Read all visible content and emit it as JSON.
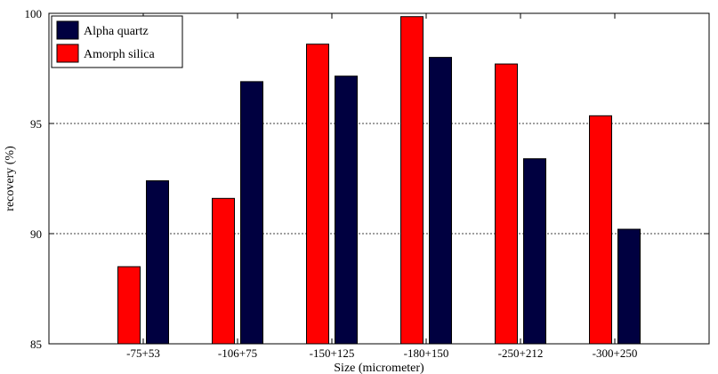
{
  "chart_data": {
    "type": "bar",
    "title": "",
    "xlabel": "Size (micrometer)",
    "ylabel": "recovery (%)",
    "categories": [
      "-75+53",
      "-106+75",
      "-150+125",
      "-180+150",
      "-250+212",
      "-300+250"
    ],
    "series": [
      {
        "name": "Amorph silica",
        "color": "#ff0000",
        "values": [
          88.5,
          91.6,
          98.6,
          99.85,
          97.7,
          95.35
        ]
      },
      {
        "name": "Alpha quartz",
        "color": "#000040",
        "values": [
          92.4,
          96.9,
          97.15,
          98.0,
          93.4,
          90.2
        ]
      }
    ],
    "ylim": [
      85,
      100
    ],
    "yticks": [
      "85",
      "90",
      "95",
      "100"
    ],
    "grid": "horizontal dotted at 90 and 95",
    "legend": {
      "placement": "top-left",
      "entries": [
        "Alpha quartz",
        "Amorph silica"
      ]
    }
  }
}
